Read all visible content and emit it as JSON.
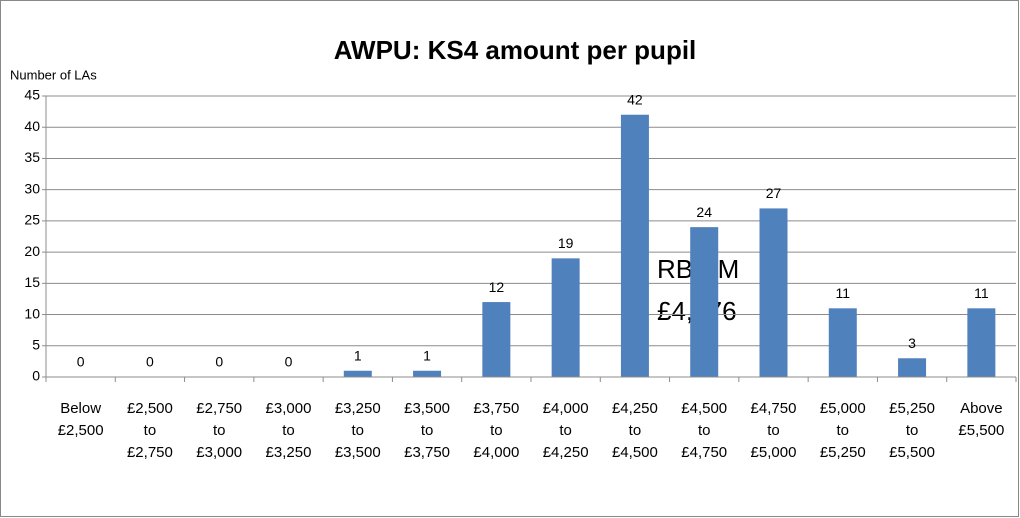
{
  "chart_data": {
    "type": "bar",
    "title": "AWPU: KS4 amount per pupil",
    "y_label": "Number of LAs",
    "categories": [
      [
        "Below",
        "£2,500"
      ],
      [
        "£2,500",
        "to",
        "£2,750"
      ],
      [
        "£2,750",
        "to",
        "£3,000"
      ],
      [
        "£3,000",
        "to",
        "£3,250"
      ],
      [
        "£3,250",
        "to",
        "£3,500"
      ],
      [
        "£3,500",
        "to",
        "£3,750"
      ],
      [
        "£3,750",
        "to",
        "£4,000"
      ],
      [
        "£4,000",
        "to",
        "£4,250"
      ],
      [
        "£4,250",
        "to",
        "£4,500"
      ],
      [
        "£4,500",
        "to",
        "£4,750"
      ],
      [
        "£4,750",
        "to",
        "£5,000"
      ],
      [
        "£5,000",
        "to",
        "£5,250"
      ],
      [
        "£5,250",
        "to",
        "£5,500"
      ],
      [
        "Above",
        "£5,500"
      ]
    ],
    "values": [
      0,
      0,
      0,
      0,
      1,
      1,
      12,
      19,
      42,
      24,
      27,
      11,
      3,
      11
    ],
    "color": "#4f81bd",
    "ylim": [
      0,
      45
    ],
    "yticks": [
      0,
      5,
      10,
      15,
      20,
      25,
      30,
      35,
      40,
      45
    ],
    "grid": true,
    "annotations": [
      "RBWM",
      "£4,576"
    ]
  }
}
